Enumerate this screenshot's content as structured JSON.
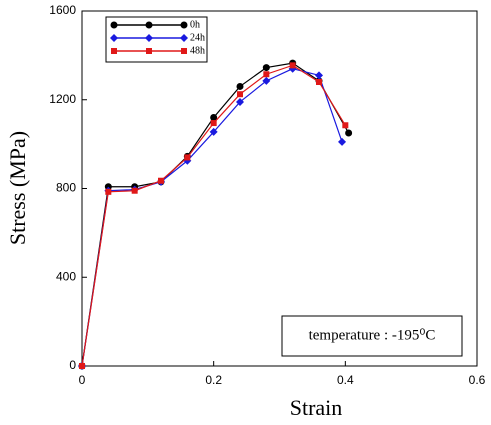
{
  "chart_data": {
    "type": "line",
    "x_label": "Strain",
    "y_label": "Stress (MPa)",
    "annotation": "temperature : -195⁰C",
    "xlim": [
      0,
      0.6
    ],
    "ylim": [
      0,
      1600
    ],
    "xticks": [
      0,
      0.2,
      0.4,
      0.6
    ],
    "yticks": [
      0,
      400,
      800,
      1200,
      1600
    ],
    "legend": "top-left",
    "series": [
      {
        "name": "0h",
        "color": "#000000",
        "marker": "circle",
        "x": [
          0,
          0.04,
          0.08,
          0.12,
          0.16,
          0.2,
          0.24,
          0.28,
          0.32,
          0.36,
          0.405
        ],
        "values": [
          0,
          808,
          808,
          830,
          945,
          1120,
          1260,
          1345,
          1365,
          1285,
          1050
        ]
      },
      {
        "name": "24h",
        "color": "#1a1adf",
        "marker": "diamond",
        "x": [
          0,
          0.04,
          0.08,
          0.12,
          0.16,
          0.2,
          0.24,
          0.28,
          0.32,
          0.36,
          0.395
        ],
        "values": [
          0,
          790,
          795,
          830,
          925,
          1055,
          1190,
          1285,
          1340,
          1310,
          1010
        ]
      },
      {
        "name": "48h",
        "color": "#e01818",
        "marker": "square",
        "x": [
          0,
          0.04,
          0.08,
          0.12,
          0.16,
          0.2,
          0.24,
          0.28,
          0.32,
          0.36,
          0.4
        ],
        "values": [
          0,
          785,
          790,
          835,
          940,
          1095,
          1225,
          1315,
          1355,
          1280,
          1085
        ]
      }
    ]
  }
}
